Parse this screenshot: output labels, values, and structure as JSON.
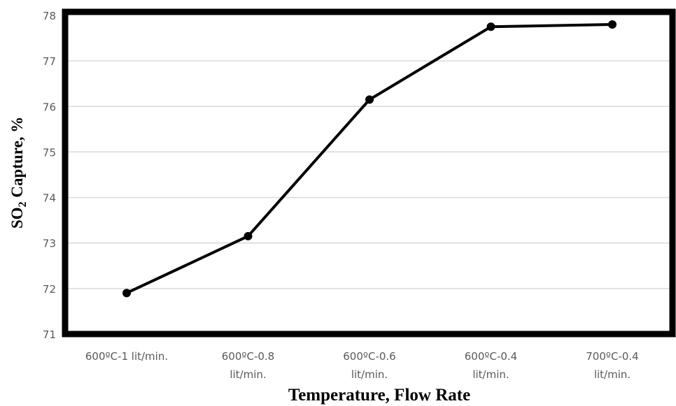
{
  "chart_data": {
    "type": "line",
    "title": "",
    "xlabel": "Temperature, Flow Rate",
    "ylabel_parts": [
      "SO",
      "2",
      " Capture, %"
    ],
    "categories": [
      [
        "600ºC-1 lit/min."
      ],
      [
        "600ºC-0.8",
        "lit/min."
      ],
      [
        "600ºC-0.6",
        "lit/min."
      ],
      [
        "600ºC-0.4",
        "lit/min."
      ],
      [
        "700ºC-0.4",
        "lit/min."
      ]
    ],
    "series": [
      {
        "values": [
          71.9,
          73.15,
          76.15,
          77.75,
          77.8
        ]
      }
    ],
    "ylim": [
      71,
      78
    ],
    "yticks": [
      "71",
      "72",
      "73",
      "74",
      "75",
      "76",
      "77",
      "78"
    ],
    "grid": true,
    "legend": "none",
    "colors": {
      "line": "#000000",
      "grid": "#d9d9d9",
      "frame": "#000000",
      "tick_text": "#595959"
    }
  }
}
